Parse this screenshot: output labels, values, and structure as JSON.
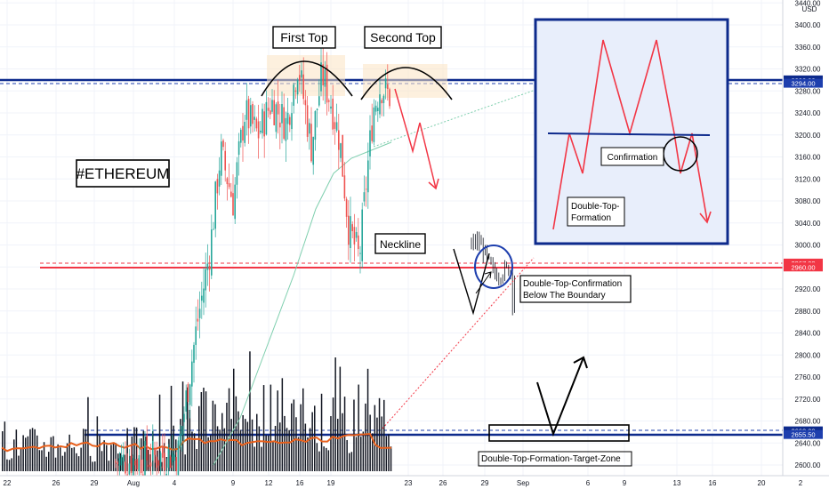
{
  "chart_data": {
    "type": "candlestick",
    "currency": "USD",
    "price_axis": {
      "range": [
        2590,
        3440
      ],
      "ticks": [
        2600,
        2640,
        2680,
        2720,
        2760,
        2800,
        2840,
        2880,
        2920,
        2960,
        3000,
        3040,
        3080,
        3120,
        3160,
        3200,
        3240,
        3280,
        3320,
        3360,
        3400,
        3440
      ],
      "tick_labels": [
        "2600.00",
        "2640.00",
        "2680.00",
        "2720.00",
        "2760.00",
        "2800.00",
        "2840.00",
        "2880.00",
        "2920.00",
        "2960.00",
        "3000.00",
        "3040.00",
        "3080.00",
        "3120.00",
        "3160.00",
        "3200.00",
        "3240.00",
        "3280.00",
        "3320.00",
        "3360.00",
        "3400.00",
        "3440.00"
      ]
    },
    "time_axis": {
      "labels": [
        "22",
        "26",
        "29",
        "Aug",
        "4",
        "9",
        "12",
        "16",
        "19",
        "23",
        "26",
        "29",
        "Sep",
        "6",
        "9",
        "13",
        "16",
        "20",
        "2"
      ]
    },
    "price_tags": [
      {
        "value": 3300.0,
        "label": "3300.00",
        "color": "#0d2a8c"
      },
      {
        "value": 3294.0,
        "label": "3294.00",
        "color": "#1e3fae"
      },
      {
        "value": 2967.0,
        "label": "2967.00",
        "color": "#f23645"
      },
      {
        "value": 2960.0,
        "label": "2960.00",
        "color": "#f23645"
      },
      {
        "value": 2662.0,
        "label": "2662.00",
        "color": "#0d2a8c"
      },
      {
        "value": 2655.5,
        "label": "2655.50",
        "color": "#1e3fae"
      }
    ],
    "annotations": {
      "symbol": "#ETHEREUM",
      "first_top": "First Top",
      "second_top": "Second Top",
      "neckline": "Neckline",
      "confirmation_line1": "Double-Top-Confirmation",
      "confirmation_line2": "Below The Boundary",
      "target_zone": "Double-Top-Formation-Target-Zone",
      "inset_confirmation": "Confirmation",
      "inset_formation_line1": "Double-Top-",
      "inset_formation_line2": "Formation"
    },
    "colors": {
      "up": "#26a69a",
      "down": "#ef5350",
      "volume": "#131722",
      "volume_ma": "#e8601c",
      "ma": "#7fcfae",
      "resistance": "#0d2a8c",
      "neckline": "#f23645",
      "arrow": "#f23645"
    }
  }
}
